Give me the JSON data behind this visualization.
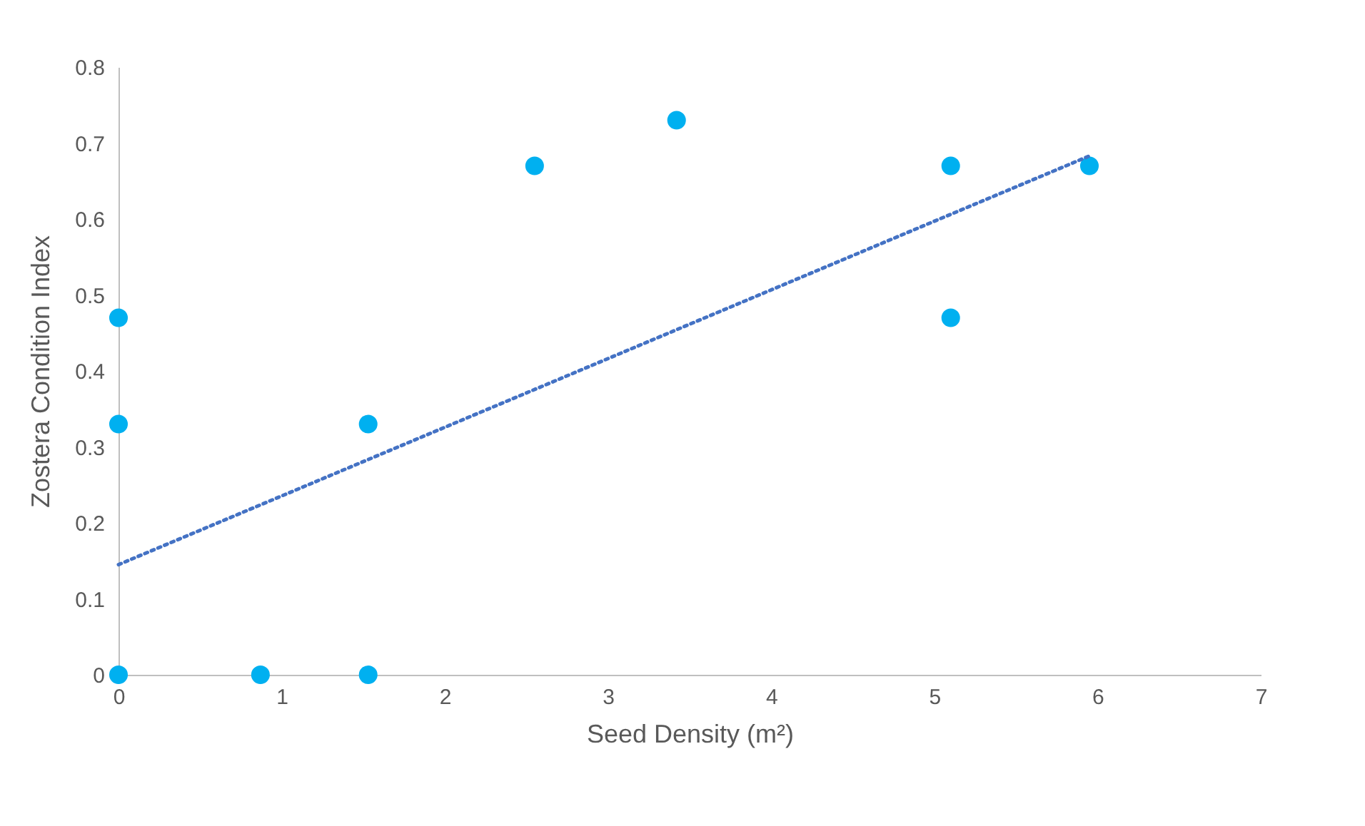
{
  "chart_data": {
    "type": "scatter",
    "xlabel": "Seed Density (m²)",
    "ylabel": "Zostera Condition Index",
    "xlim": [
      0,
      7
    ],
    "ylim": [
      0,
      0.8
    ],
    "xticks": [
      0,
      1,
      2,
      3,
      4,
      5,
      6,
      7
    ],
    "yticks": [
      0,
      0.1,
      0.2,
      0.3,
      0.4,
      0.5,
      0.6,
      0.7,
      0.8
    ],
    "grid": false,
    "series": [
      {
        "color": "#00b0f0",
        "marker": "circle",
        "x": [
          0,
          0,
          0,
          0.87,
          1.53,
          1.53,
          2.55,
          3.42,
          5.1,
          5.1,
          5.95
        ],
        "values": [
          0,
          0.33,
          0.47,
          0,
          0,
          0.33,
          0.67,
          0.73,
          0.67,
          0.47,
          0.67
        ]
      },
      {
        "type": "line",
        "color": "#4472c4",
        "line_style": "dotted",
        "x": [
          0,
          5.95
        ],
        "values": [
          0.145,
          0.683
        ]
      }
    ]
  }
}
